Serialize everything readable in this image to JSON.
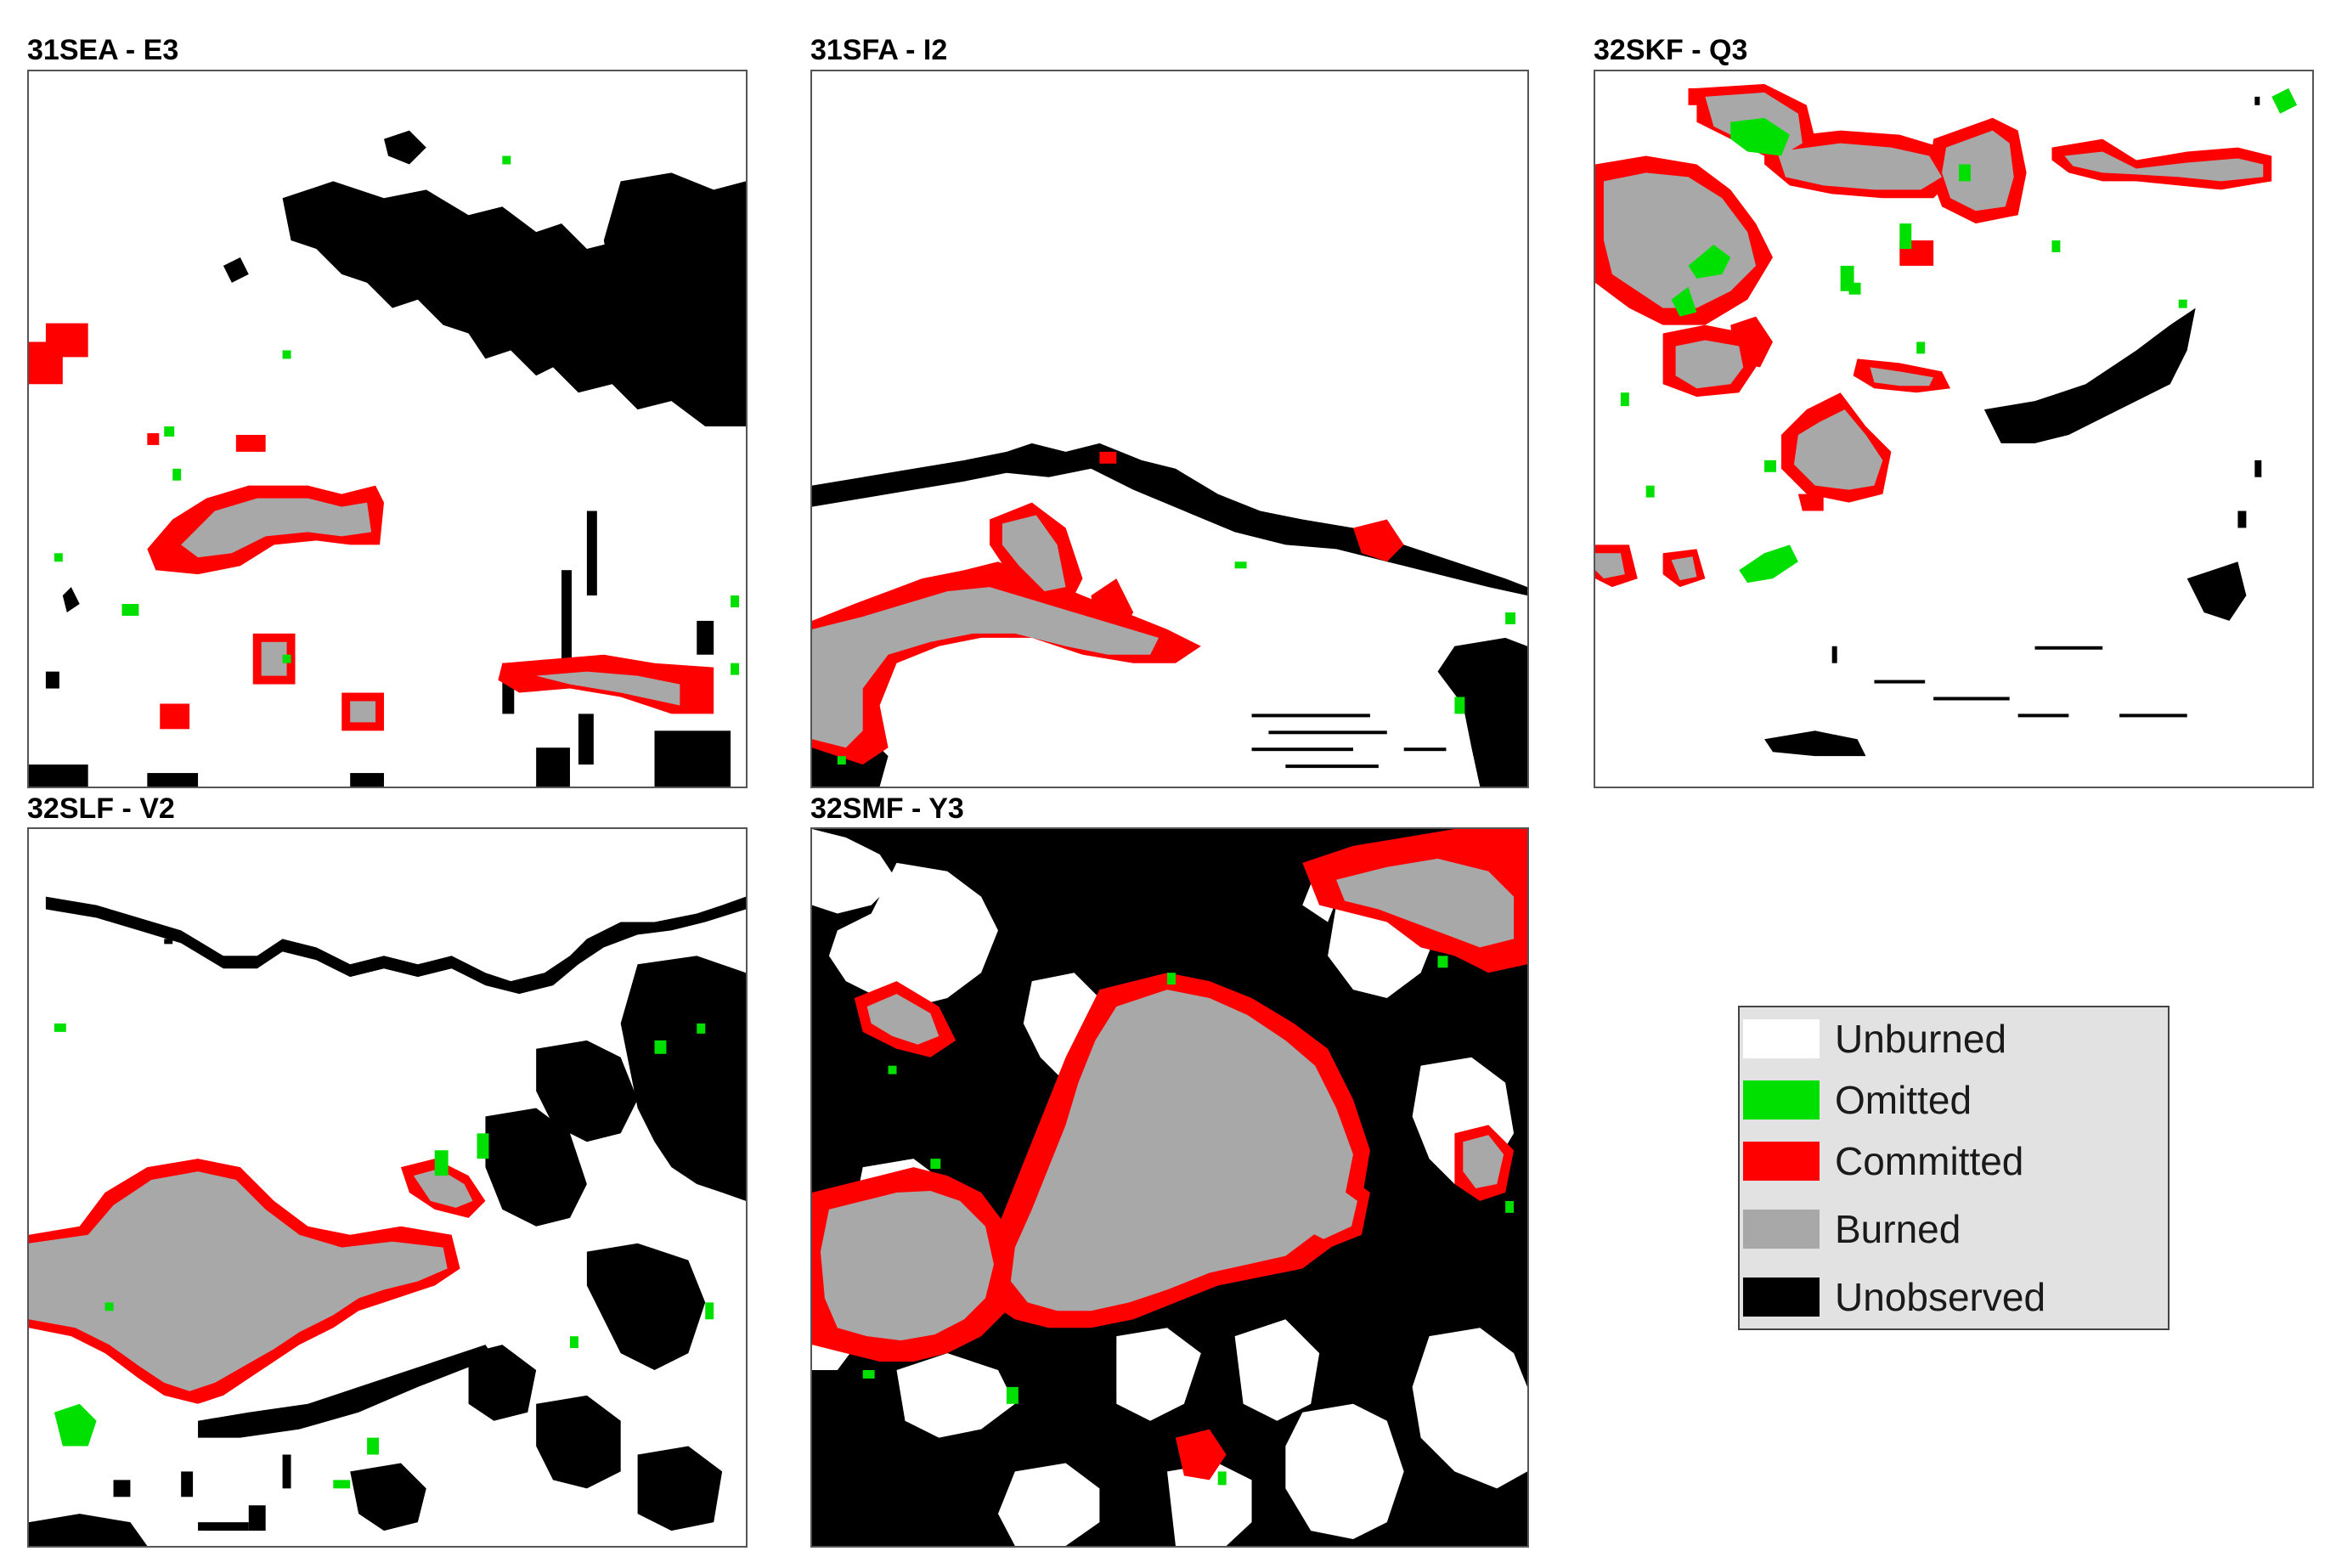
{
  "colors": {
    "unburned": "#ffffff",
    "omitted": "#00e000",
    "committed": "#ff0000",
    "burned": "#a8a8a8",
    "unobserved": "#000000"
  },
  "panels": [
    {
      "title": "31SEA - E3"
    },
    {
      "title": "31SFA - I2"
    },
    {
      "title": "32SKF - Q3"
    },
    {
      "title": "32SLF - V2"
    },
    {
      "title": "32SMF - Y3"
    }
  ],
  "legend": {
    "items": [
      {
        "label": "Unburned",
        "color": "#ffffff"
      },
      {
        "label": "Omitted",
        "color": "#00e000"
      },
      {
        "label": "Committed",
        "color": "#ff0000"
      },
      {
        "label": "Burned",
        "color": "#a8a8a8"
      },
      {
        "label": "Unobserved",
        "color": "#000000"
      }
    ]
  }
}
